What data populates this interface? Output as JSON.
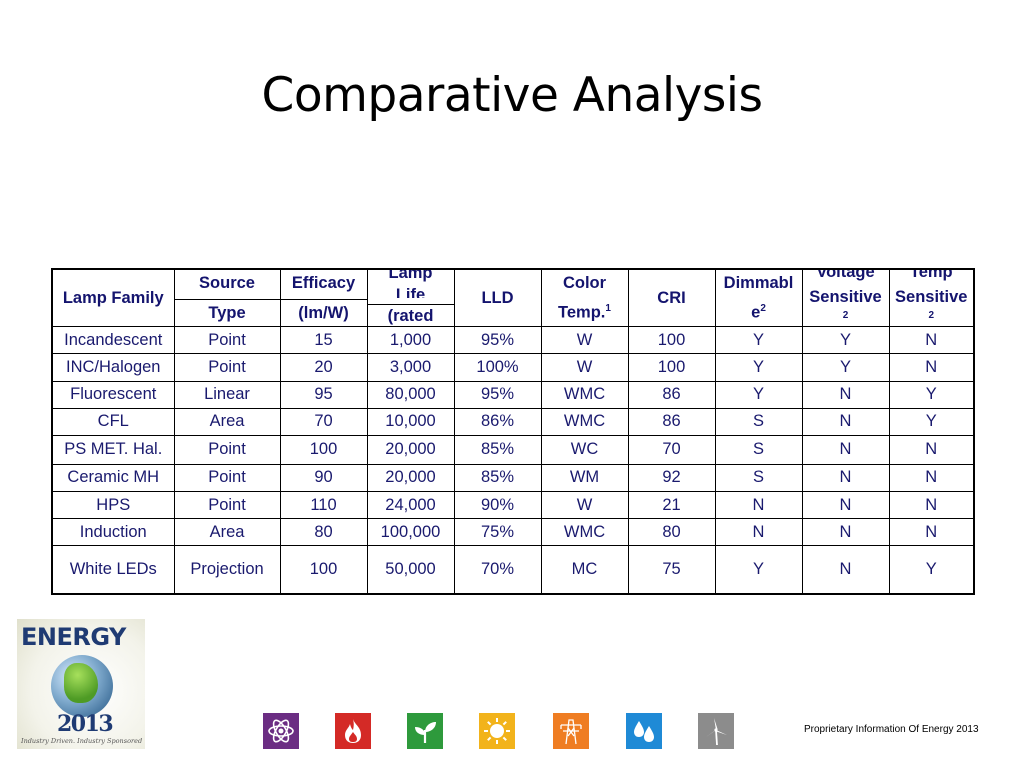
{
  "title": "Comparative Analysis",
  "table": {
    "headers": {
      "lamp_family": "Lamp Family",
      "source_top": "Source",
      "source_bot": "Type",
      "efficacy_top": "Efficacy",
      "efficacy_bot": "(lm/W)",
      "life_top": "Lamp",
      "life_mid": "Life",
      "life_bot": "(rated",
      "lld": "LLD",
      "color_top": "Color",
      "color_bot": "Temp.",
      "color_sup": "1",
      "cri": "CRI",
      "dimm_top": "Dimmabl",
      "dimm_bot": "e",
      "dimm_sup": "2",
      "volt_top": "Voltage",
      "volt_mid": "Sensitive",
      "volt_sup": "2",
      "temp_top": "Temp",
      "temp_mid": "Sensitive",
      "temp_sup": "2"
    },
    "rows": [
      {
        "family": "Incandescent",
        "source": "Point",
        "efficacy": "15",
        "life": "1,000",
        "lld": "95%",
        "color": "W",
        "cri": "100",
        "dimm": "Y",
        "volt": "Y",
        "temp": "N"
      },
      {
        "family": "INC/Halogen",
        "source": "Point",
        "efficacy": "20",
        "life": "3,000",
        "lld": "100%",
        "color": "W",
        "cri": "100",
        "dimm": "Y",
        "volt": "Y",
        "temp": "N"
      },
      {
        "family": "Fluorescent",
        "source": "Linear",
        "efficacy": "95",
        "life": "80,000",
        "lld": "95%",
        "color": "WMC",
        "cri": "86",
        "dimm": "Y",
        "volt": "N",
        "temp": "Y"
      },
      {
        "family": "CFL",
        "source": "Area",
        "efficacy": "70",
        "life": "10,000",
        "lld": "86%",
        "color": "WMC",
        "cri": "86",
        "dimm": "S",
        "volt": "N",
        "temp": "Y"
      },
      {
        "family": "PS MET. Hal.",
        "source": "Point",
        "efficacy": "100",
        "life": "20,000",
        "lld": "85%",
        "color": "WC",
        "cri": "70",
        "dimm": "S",
        "volt": "N",
        "temp": "N"
      },
      {
        "family": "Ceramic MH",
        "source": "Point",
        "efficacy": "90",
        "life": "20,000",
        "lld": "85%",
        "color": "WM",
        "cri": "92",
        "dimm": "S",
        "volt": "N",
        "temp": "N"
      },
      {
        "family": "HPS",
        "source": "Point",
        "efficacy": "110",
        "life": "24,000",
        "lld": "90%",
        "color": "W",
        "cri": "21",
        "dimm": "N",
        "volt": "N",
        "temp": "N"
      },
      {
        "family": "Induction",
        "source": "Area",
        "efficacy": "80",
        "life": "100,000",
        "lld": "75%",
        "color": "WMC",
        "cri": "80",
        "dimm": "N",
        "volt": "N",
        "temp": "N"
      },
      {
        "family": "White LEDs",
        "source": "Projection",
        "efficacy": "100",
        "life": "50,000",
        "lld": "70%",
        "color": "MC",
        "cri": "75",
        "dimm": "Y",
        "volt": "N",
        "temp": "Y"
      }
    ]
  },
  "logo": {
    "word": "ENERGY",
    "year": "2013",
    "tagline": "Industry Driven. Industry Sponsored"
  },
  "icon_tiles": [
    {
      "icon": "atom-icon",
      "color": "#6b2d83"
    },
    {
      "icon": "flame-icon",
      "color": "#d42a26"
    },
    {
      "icon": "sprout-icon",
      "color": "#2e9a3c"
    },
    {
      "icon": "sun-icon",
      "color": "#f2b31b"
    },
    {
      "icon": "power-tower-icon",
      "color": "#ef7d22"
    },
    {
      "icon": "water-drops-icon",
      "color": "#1f8ad6"
    },
    {
      "icon": "wind-turbine-icon",
      "color": "#8c8c8c"
    }
  ],
  "footer": "Proprietary Information Of Energy 2013"
}
